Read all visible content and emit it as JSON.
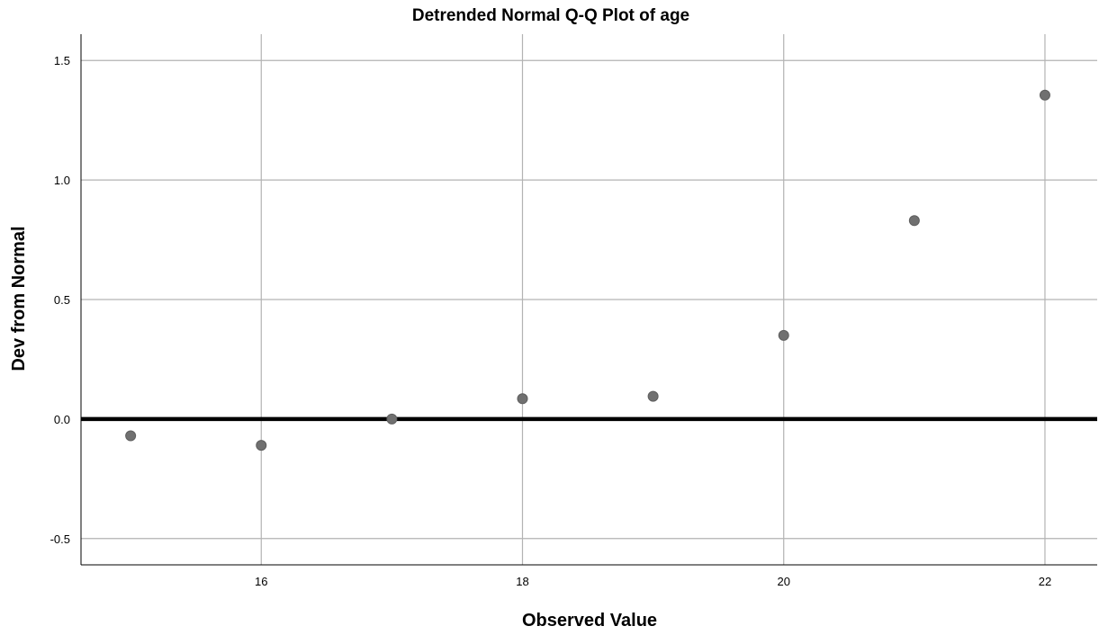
{
  "chart_data": {
    "type": "scatter",
    "title": "Detrended Normal Q-Q Plot of age",
    "xlabel": "Observed Value",
    "ylabel": "Dev from Normal",
    "xlim": [
      14.62,
      22.4
    ],
    "ylim": [
      -0.61,
      1.61
    ],
    "xticks": [
      16,
      18,
      20,
      22
    ],
    "xtick_labels": [
      "16",
      "18",
      "20",
      "22"
    ],
    "yticks": [
      -0.5,
      0.0,
      0.5,
      1.0,
      1.5
    ],
    "ytick_labels": [
      "-0.5",
      "0.0",
      "0.5",
      "1.0",
      "1.5"
    ],
    "reference_line": 0,
    "grid": true,
    "point_color": "#707070",
    "points": [
      {
        "x": 15,
        "y": -0.07
      },
      {
        "x": 16,
        "y": -0.11
      },
      {
        "x": 17,
        "y": 0.0
      },
      {
        "x": 18,
        "y": 0.085
      },
      {
        "x": 19,
        "y": 0.095
      },
      {
        "x": 20,
        "y": 0.35
      },
      {
        "x": 21,
        "y": 0.83
      },
      {
        "x": 22,
        "y": 1.355
      }
    ]
  }
}
